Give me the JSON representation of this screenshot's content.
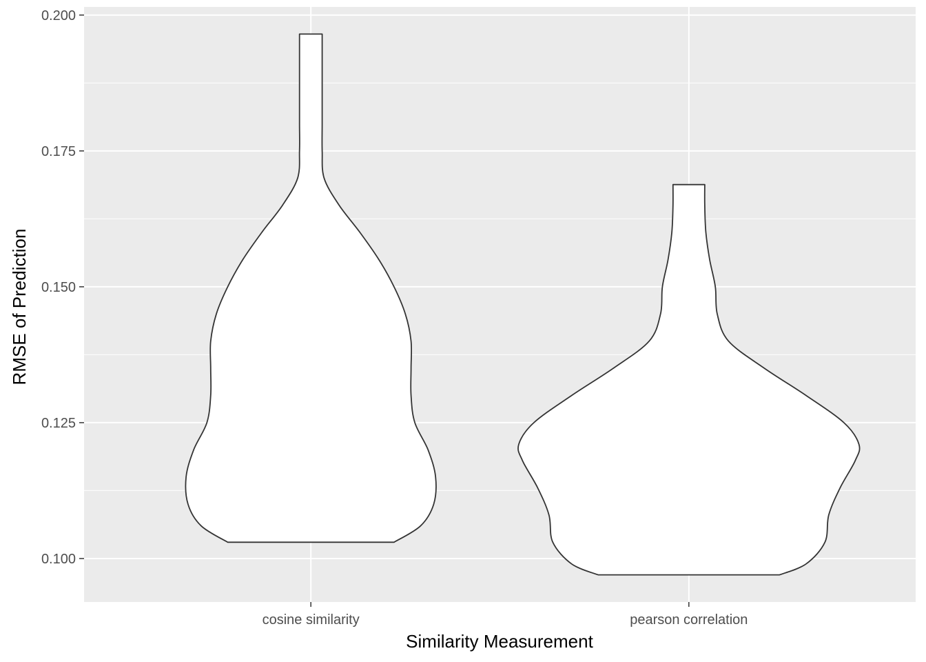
{
  "chart_data": {
    "type": "violin",
    "title": "",
    "xlabel": "Similarity Measurement",
    "ylabel": "RMSE of Prediction",
    "categories": [
      "cosine similarity",
      "pearson correlation"
    ],
    "ylim": [
      0.092,
      0.2015
    ],
    "yticks": [
      0.1,
      0.125,
      0.15,
      0.175,
      0.2
    ],
    "ytick_labels": [
      "0.100",
      "0.125",
      "0.150",
      "0.175",
      "0.200"
    ],
    "grid": true,
    "legend": "none",
    "colors": {
      "panel": "#ebebeb",
      "grid": "#ffffff",
      "violin_fill": "#ffffff",
      "violin_outline": "#333333",
      "tick_text": "#4d4d4d",
      "axis_text": "#000000"
    },
    "violins": [
      {
        "category": "cosine similarity",
        "min": 0.103,
        "max": 0.1965,
        "max_half_width": 0.33,
        "profile": [
          {
            "y": 0.103,
            "w": 0.22
          },
          {
            "y": 0.106,
            "w": 0.29
          },
          {
            "y": 0.11,
            "w": 0.325
          },
          {
            "y": 0.115,
            "w": 0.33
          },
          {
            "y": 0.12,
            "w": 0.31
          },
          {
            "y": 0.125,
            "w": 0.275
          },
          {
            "y": 0.13,
            "w": 0.265
          },
          {
            "y": 0.135,
            "w": 0.265
          },
          {
            "y": 0.14,
            "w": 0.265
          },
          {
            "y": 0.145,
            "w": 0.25
          },
          {
            "y": 0.15,
            "w": 0.22
          },
          {
            "y": 0.155,
            "w": 0.18
          },
          {
            "y": 0.16,
            "w": 0.13
          },
          {
            "y": 0.165,
            "w": 0.075
          },
          {
            "y": 0.17,
            "w": 0.035
          },
          {
            "y": 0.175,
            "w": 0.03
          },
          {
            "y": 0.18,
            "w": 0.03
          },
          {
            "y": 0.185,
            "w": 0.03
          },
          {
            "y": 0.19,
            "w": 0.03
          },
          {
            "y": 0.1965,
            "w": 0.03
          }
        ]
      },
      {
        "category": "pearson correlation",
        "min": 0.097,
        "max": 0.1688,
        "max_half_width": 0.45,
        "profile": [
          {
            "y": 0.097,
            "w": 0.24
          },
          {
            "y": 0.099,
            "w": 0.31
          },
          {
            "y": 0.103,
            "w": 0.36
          },
          {
            "y": 0.108,
            "w": 0.37
          },
          {
            "y": 0.113,
            "w": 0.4
          },
          {
            "y": 0.118,
            "w": 0.44
          },
          {
            "y": 0.121,
            "w": 0.45
          },
          {
            "y": 0.125,
            "w": 0.41
          },
          {
            "y": 0.13,
            "w": 0.31
          },
          {
            "y": 0.135,
            "w": 0.2
          },
          {
            "y": 0.14,
            "w": 0.105
          },
          {
            "y": 0.145,
            "w": 0.075
          },
          {
            "y": 0.15,
            "w": 0.07
          },
          {
            "y": 0.155,
            "w": 0.055
          },
          {
            "y": 0.16,
            "w": 0.045
          },
          {
            "y": 0.165,
            "w": 0.042
          },
          {
            "y": 0.1688,
            "w": 0.042
          }
        ]
      }
    ]
  }
}
